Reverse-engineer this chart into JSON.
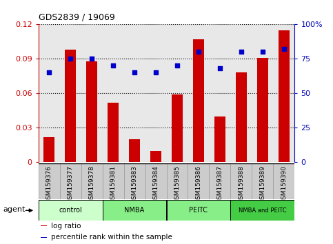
{
  "title": "GDS2839 / 19069",
  "categories": [
    "GSM159376",
    "GSM159377",
    "GSM159378",
    "GSM159381",
    "GSM159383",
    "GSM159384",
    "GSM159385",
    "GSM159386",
    "GSM159387",
    "GSM159388",
    "GSM159389",
    "GSM159390"
  ],
  "bar_values": [
    0.022,
    0.098,
    0.088,
    0.052,
    0.02,
    0.01,
    0.059,
    0.107,
    0.04,
    0.078,
    0.091,
    0.115
  ],
  "percentile_values": [
    65,
    75,
    75,
    70,
    65,
    65,
    70,
    80,
    68,
    80,
    80,
    82
  ],
  "bar_color": "#cc0000",
  "percentile_color": "#0000cc",
  "left_ylim": [
    0,
    0.12
  ],
  "right_ylim": [
    0,
    100
  ],
  "left_yticks": [
    0,
    0.03,
    0.06,
    0.09,
    0.12
  ],
  "right_yticks": [
    0,
    25,
    50,
    75,
    100
  ],
  "right_yticklabels": [
    "0",
    "25",
    "50",
    "75",
    "100%"
  ],
  "groups": [
    {
      "label": "control",
      "start": 0,
      "end": 3,
      "color": "#ccffcc"
    },
    {
      "label": "NMBA",
      "start": 3,
      "end": 6,
      "color": "#99ee99"
    },
    {
      "label": "PEITC",
      "start": 6,
      "end": 9,
      "color": "#99ee99"
    },
    {
      "label": "NMBA and PEITC",
      "start": 9,
      "end": 12,
      "color": "#66dd66"
    }
  ],
  "agent_label": "agent",
  "legend_items": [
    {
      "label": "log ratio",
      "color": "#cc0000"
    },
    {
      "label": "percentile rank within the sample",
      "color": "#0000cc"
    }
  ],
  "bar_color_red": "#cc0000",
  "percentile_color_blue": "#0000cc",
  "background_color": "#ffffff",
  "plot_bg_color": "#e8e8e8",
  "xlabel_color": "#cc0000",
  "ylabel_right_color": "#0000bb",
  "xstrip_color": "#cccccc",
  "group_colors": [
    "#ccffcc",
    "#88ee88",
    "#88ee88",
    "#44cc44"
  ],
  "spine_color": "#000000"
}
